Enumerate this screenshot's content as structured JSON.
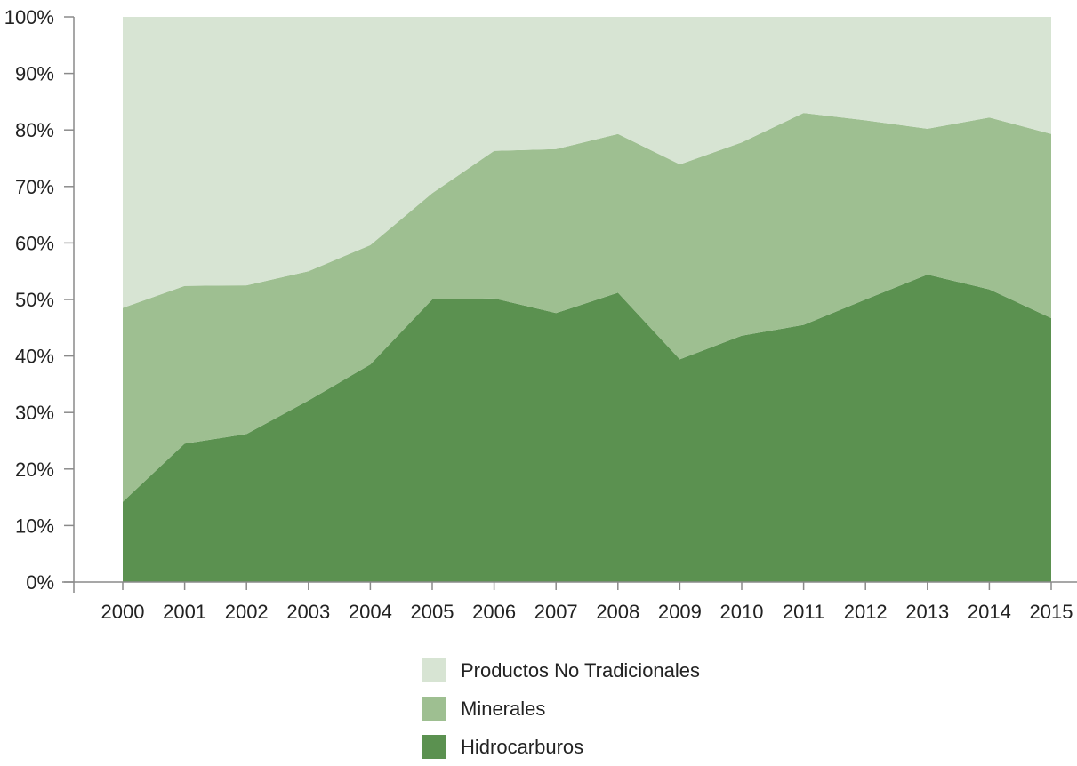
{
  "chart_data": {
    "type": "area",
    "stacked": true,
    "x": [
      "2000",
      "2001",
      "2002",
      "2003",
      "2004",
      "2005",
      "2006",
      "2007",
      "2008",
      "2009",
      "2010",
      "2011",
      "2012",
      "2013",
      "2014",
      "2015"
    ],
    "y_ticks": [
      "0%",
      "10%",
      "20%",
      "30%",
      "40%",
      "50%",
      "60%",
      "70%",
      "80%",
      "90%",
      "100%"
    ],
    "ylim": [
      0,
      100
    ],
    "grid": false,
    "legend_position": "bottom",
    "series": [
      {
        "name": "Hidrocarburos",
        "color": "#5b9150",
        "values": [
          14.2,
          24.5,
          26.2,
          32.1,
          38.5,
          50.0,
          50.2,
          47.6,
          51.2,
          39.4,
          43.6,
          45.5,
          50.0,
          54.4,
          51.8,
          46.7
        ]
      },
      {
        "name": "Minerales",
        "color": "#9ebf91",
        "values": [
          34.3,
          27.9,
          26.3,
          22.9,
          21.1,
          18.8,
          26.1,
          29.0,
          28.1,
          34.5,
          34.2,
          37.5,
          31.7,
          25.8,
          30.4,
          32.6
        ]
      },
      {
        "name": "Productos No Tradicionales",
        "color": "#d7e4d3",
        "values": [
          51.5,
          47.6,
          47.5,
          45.0,
          40.4,
          31.2,
          23.7,
          23.4,
          20.7,
          26.1,
          22.2,
          17.0,
          18.3,
          19.8,
          17.8,
          20.7
        ]
      }
    ]
  },
  "legend": [
    {
      "label": "Productos No Tradicionales",
      "color": "#d7e4d3"
    },
    {
      "label": "Minerales",
      "color": "#9ebf91"
    },
    {
      "label": "Hidrocarburos",
      "color": "#5b9150"
    }
  ]
}
